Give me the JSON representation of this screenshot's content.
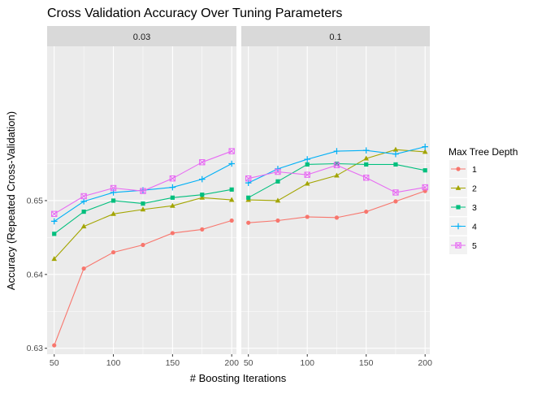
{
  "chart_data": {
    "type": "line",
    "title": "Cross Validation Accuracy Over Tuning Parameters",
    "xlabel": "# Boosting Iterations",
    "ylabel": "Accuracy (Repeated Cross-Validation)",
    "x_ticks": [
      50,
      100,
      150,
      200
    ],
    "y_ticks": [
      0.63,
      0.64,
      0.65
    ],
    "y_tick_labels": [
      "0.63",
      "0.64",
      "0.65"
    ],
    "xlim": [
      44,
      204
    ],
    "ylim": [
      0.6292,
      0.6709
    ],
    "grid": true,
    "legend_position": "right",
    "legend_title": "Max Tree Depth",
    "x": [
      50,
      75,
      100,
      125,
      150,
      175,
      200
    ],
    "panels": [
      {
        "label": "0.03",
        "series": [
          {
            "name": "1",
            "color": "#F8766D",
            "shape": "circle",
            "values": [
              0.6304,
              0.6408,
              0.643,
              0.644,
              0.6456,
              0.6461,
              0.6473
            ]
          },
          {
            "name": "2",
            "color": "#A3A500",
            "shape": "triangle",
            "values": [
              0.6421,
              0.6465,
              0.6482,
              0.6488,
              0.6493,
              0.6504,
              0.6501
            ]
          },
          {
            "name": "3",
            "color": "#00BF7D",
            "shape": "square",
            "values": [
              0.6455,
              0.6485,
              0.65,
              0.6496,
              0.6504,
              0.6508,
              0.6515
            ]
          },
          {
            "name": "4",
            "color": "#00B0F6",
            "shape": "plus",
            "values": [
              0.6472,
              0.6499,
              0.6511,
              0.6514,
              0.6518,
              0.6529,
              0.655
            ]
          },
          {
            "name": "5",
            "color": "#E76BF3",
            "shape": "boxx",
            "values": [
              0.6482,
              0.6506,
              0.6517,
              0.6513,
              0.653,
              0.6552,
              0.6567
            ]
          }
        ]
      },
      {
        "label": "0.1",
        "series": [
          {
            "name": "1",
            "color": "#F8766D",
            "shape": "circle",
            "values": [
              0.647,
              0.6473,
              0.6478,
              0.6477,
              0.6485,
              0.6499,
              0.6513
            ]
          },
          {
            "name": "2",
            "color": "#A3A500",
            "shape": "triangle",
            "values": [
              0.6501,
              0.65,
              0.6523,
              0.6534,
              0.6557,
              0.6569,
              0.6566
            ]
          },
          {
            "name": "3",
            "color": "#00BF7D",
            "shape": "square",
            "values": [
              0.6504,
              0.6526,
              0.6549,
              0.655,
              0.6549,
              0.6549,
              0.6541
            ]
          },
          {
            "name": "4",
            "color": "#00B0F6",
            "shape": "plus",
            "values": [
              0.6524,
              0.6543,
              0.6556,
              0.6567,
              0.6568,
              0.6563,
              0.6573
            ]
          },
          {
            "name": "5",
            "color": "#E76BF3",
            "shape": "boxx",
            "values": [
              0.653,
              0.6539,
              0.6535,
              0.6548,
              0.6531,
              0.6511,
              0.6518
            ]
          }
        ]
      }
    ]
  }
}
